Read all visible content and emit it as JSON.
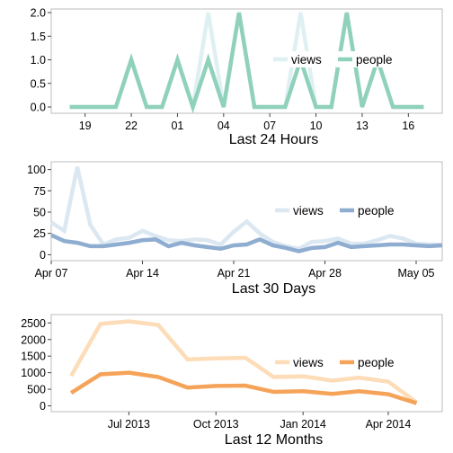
{
  "chart_data": [
    {
      "type": "line",
      "xlabel": "Last 24 Hours",
      "x_unit": "hour of day",
      "x": [
        18,
        19,
        20,
        21,
        22,
        23,
        0,
        1,
        2,
        3,
        4,
        5,
        6,
        7,
        8,
        9,
        10,
        11,
        12,
        13,
        14,
        15,
        16,
        17
      ],
      "xticks": [
        {
          "x": 19,
          "label": "19"
        },
        {
          "x": 22,
          "label": "22"
        },
        {
          "x": 1,
          "label": "01"
        },
        {
          "x": 4,
          "label": "04"
        },
        {
          "x": 7,
          "label": "07"
        },
        {
          "x": 10,
          "label": "10"
        },
        {
          "x": 13,
          "label": "13"
        },
        {
          "x": 16,
          "label": "16"
        }
      ],
      "yticks": [
        0,
        0.5,
        1,
        1.5,
        2
      ],
      "ytick_labels": [
        "0.0",
        "0.5",
        "1.0",
        "1.5",
        "2.0"
      ],
      "ylim": [
        0,
        2
      ],
      "legend_position": "right",
      "series": [
        {
          "name": "views",
          "color": "#dff0f3",
          "values": [
            0,
            0,
            0,
            0,
            1,
            0,
            0,
            1,
            0,
            2,
            0,
            2,
            0,
            0,
            0,
            2,
            0,
            0,
            2,
            0,
            1,
            0,
            0,
            0
          ]
        },
        {
          "name": "people",
          "color": "#8fd1bb",
          "values": [
            0,
            0,
            0,
            0,
            1,
            0,
            0,
            1,
            0,
            1,
            0,
            2,
            0,
            0,
            0,
            1,
            0,
            0,
            2,
            0,
            1,
            0,
            0,
            0
          ]
        }
      ]
    },
    {
      "type": "line",
      "xlabel": "Last 30 Days",
      "x_unit": "date",
      "x": [
        "2014-04-07",
        "2014-04-08",
        "2014-04-09",
        "2014-04-10",
        "2014-04-11",
        "2014-04-12",
        "2014-04-13",
        "2014-04-14",
        "2014-04-15",
        "2014-04-16",
        "2014-04-17",
        "2014-04-18",
        "2014-04-19",
        "2014-04-20",
        "2014-04-21",
        "2014-04-22",
        "2014-04-23",
        "2014-04-24",
        "2014-04-25",
        "2014-04-26",
        "2014-04-27",
        "2014-04-28",
        "2014-04-29",
        "2014-04-30",
        "2014-05-01",
        "2014-05-02",
        "2014-05-03",
        "2014-05-04",
        "2014-05-05",
        "2014-05-06",
        "2014-05-07"
      ],
      "xticks": [
        {
          "x": "2014-04-07",
          "label": "Apr 07"
        },
        {
          "x": "2014-04-14",
          "label": "Apr 14"
        },
        {
          "x": "2014-04-21",
          "label": "Apr 21"
        },
        {
          "x": "2014-04-28",
          "label": "Apr 28"
        },
        {
          "x": "2014-05-05",
          "label": "May 05"
        }
      ],
      "xlim": [
        "2014-04-07",
        "2014-05-07"
      ],
      "yticks": [
        0,
        25,
        50,
        75,
        100
      ],
      "ytick_labels": [
        "0",
        "25",
        "50",
        "75",
        "100"
      ],
      "ylim": [
        0,
        105
      ],
      "legend_position": "right",
      "series": [
        {
          "name": "views",
          "color": "#dbe7f1",
          "values": [
            38,
            28,
            103,
            35,
            12,
            18,
            20,
            28,
            22,
            17,
            16,
            18,
            17,
            12,
            27,
            39,
            25,
            15,
            10,
            7,
            15,
            16,
            19,
            13,
            13,
            17,
            22,
            19,
            13,
            12,
            12
          ]
        },
        {
          "name": "people",
          "color": "#8fadd0",
          "values": [
            23,
            16,
            14,
            10,
            10,
            12,
            14,
            17,
            18,
            10,
            14,
            11,
            9,
            7,
            11,
            12,
            18,
            11,
            8,
            4,
            8,
            9,
            14,
            9,
            10,
            11,
            12,
            12,
            11,
            10,
            11
          ]
        }
      ]
    },
    {
      "type": "line",
      "xlabel": "Last 12 Months",
      "x_unit": "date",
      "x": [
        "2013-05-01",
        "2013-06-01",
        "2013-07-01",
        "2013-08-01",
        "2013-09-01",
        "2013-10-01",
        "2013-11-01",
        "2013-12-01",
        "2014-01-01",
        "2014-02-01",
        "2014-03-01",
        "2014-04-01",
        "2014-05-01"
      ],
      "xticks": [
        {
          "x": "2013-07-01",
          "label": "Jul 2013"
        },
        {
          "x": "2013-10-01",
          "label": "Oct 2013"
        },
        {
          "x": "2014-01-01",
          "label": "Jan 2014"
        },
        {
          "x": "2014-04-01",
          "label": "Apr 2014"
        }
      ],
      "xlim": [
        "2013-04-10",
        "2014-05-28"
      ],
      "yticks": [
        0,
        500,
        1000,
        1500,
        2000,
        2500
      ],
      "ytick_labels": [
        "0",
        "500",
        "1000",
        "1500",
        "2000",
        "2500"
      ],
      "ylim": [
        0,
        2650
      ],
      "legend_position": "right",
      "series": [
        {
          "name": "views",
          "color": "#fddcb8",
          "values": [
            900,
            2470,
            2550,
            2440,
            1400,
            1430,
            1450,
            870,
            890,
            760,
            850,
            730,
            100
          ]
        },
        {
          "name": "people",
          "color": "#f6a35a",
          "values": [
            390,
            950,
            1000,
            870,
            550,
            600,
            610,
            420,
            440,
            360,
            440,
            350,
            80
          ]
        }
      ]
    }
  ]
}
